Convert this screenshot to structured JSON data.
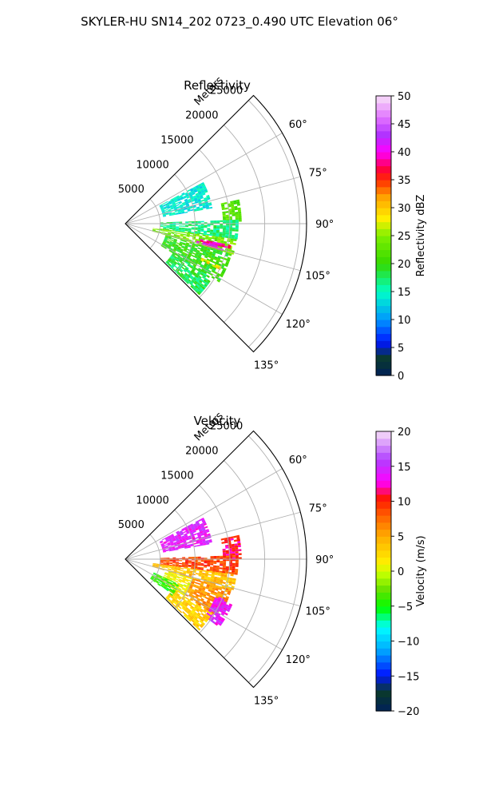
{
  "figure": {
    "suptitle": "SKYLER-HU  SN14_202  0723_0.490 UTC Elevation 06°"
  },
  "chart_data": [
    {
      "type": "heatmap",
      "title": "Reflectivity",
      "radial_label": "Meters",
      "range_ticks": [
        5000,
        10000,
        15000,
        20000,
        25000
      ],
      "range_tick_labels": [
        "5000",
        "10000",
        "15000",
        "20000",
        "25000"
      ],
      "rmax": 26000,
      "azimuth_range": [
        45,
        135
      ],
      "azimuth_ticks": [
        60,
        75,
        90,
        105,
        120,
        135
      ],
      "azimuth_tick_labels": [
        "60°",
        "75°",
        "90°",
        "105°",
        "120°",
        "135°"
      ],
      "grid": true,
      "colorbar": {
        "label": "Reflectivity dBZ",
        "vmin": 0,
        "vmax": 50,
        "ticks": [
          0,
          5,
          10,
          15,
          20,
          25,
          30,
          35,
          40,
          45,
          50
        ],
        "tick_labels": [
          "0",
          "5",
          "10",
          "15",
          "20",
          "25",
          "30",
          "35",
          "40",
          "45",
          "50"
        ]
      },
      "echo_regions": [
        {
          "az": [
            62,
            80
          ],
          "r": [
            5500,
            12500
          ],
          "value": 14
        },
        {
          "az": [
            78,
            90
          ],
          "r": [
            14000,
            16500
          ],
          "value": 22
        },
        {
          "az": [
            88,
            98
          ],
          "r": [
            5000,
            16000
          ],
          "value": 17
        },
        {
          "az": [
            98,
            106
          ],
          "r": [
            4000,
            16000
          ],
          "value": 24
        },
        {
          "az": [
            106,
            122
          ],
          "r": [
            6000,
            15500
          ],
          "value": 20
        },
        {
          "az": [
            122,
            134
          ],
          "r": [
            8000,
            14500
          ],
          "value": 18
        },
        {
          "az": [
            101.5,
            103
          ],
          "r": [
            11000,
            15500
          ],
          "value": 38
        },
        {
          "az": [
            103.5,
            105
          ],
          "r": [
            10500,
            14500
          ],
          "value": 40
        },
        {
          "az": [
            114,
            116
          ],
          "r": [
            12000,
            15000
          ],
          "value": 29
        }
      ]
    },
    {
      "type": "heatmap",
      "title": "Velocity",
      "radial_label": "Meters",
      "range_ticks": [
        5000,
        10000,
        15000,
        20000,
        25000
      ],
      "range_tick_labels": [
        "5000",
        "10000",
        "15000",
        "20000",
        "25000"
      ],
      "rmax": 26000,
      "azimuth_range": [
        45,
        135
      ],
      "azimuth_ticks": [
        60,
        75,
        90,
        105,
        120,
        135
      ],
      "azimuth_tick_labels": [
        "60°",
        "75°",
        "90°",
        "105°",
        "120°",
        "135°"
      ],
      "grid": true,
      "colorbar": {
        "label": "Velocity (m/s)",
        "vmin": -20,
        "vmax": 20,
        "ticks": [
          -20,
          -15,
          -10,
          -5,
          0,
          5,
          10,
          15,
          20
        ],
        "tick_labels": [
          "−20",
          "−15",
          "−10",
          "−5",
          "0",
          "5",
          "10",
          "15",
          "20"
        ]
      },
      "echo_regions": [
        {
          "az": [
            62,
            80
          ],
          "r": [
            5500,
            12500
          ],
          "value": 14
        },
        {
          "az": [
            78,
            90
          ],
          "r": [
            14000,
            16500
          ],
          "value": 11
        },
        {
          "az": [
            88,
            98
          ],
          "r": [
            5000,
            16000
          ],
          "value": 9
        },
        {
          "az": [
            98,
            106
          ],
          "r": [
            4000,
            16000
          ],
          "value": 4
        },
        {
          "az": [
            106,
            122
          ],
          "r": [
            10000,
            15500
          ],
          "value": 6
        },
        {
          "az": [
            112,
            126
          ],
          "r": [
            14000,
            16500
          ],
          "value": 14
        },
        {
          "az": [
            106,
            122
          ],
          "r": [
            6000,
            10000
          ],
          "value": 1
        },
        {
          "az": [
            122,
            134
          ],
          "r": [
            8000,
            14500
          ],
          "value": 3
        },
        {
          "az": [
            115,
            128
          ],
          "r": [
            4500,
            8500
          ],
          "value": -4
        }
      ]
    }
  ]
}
